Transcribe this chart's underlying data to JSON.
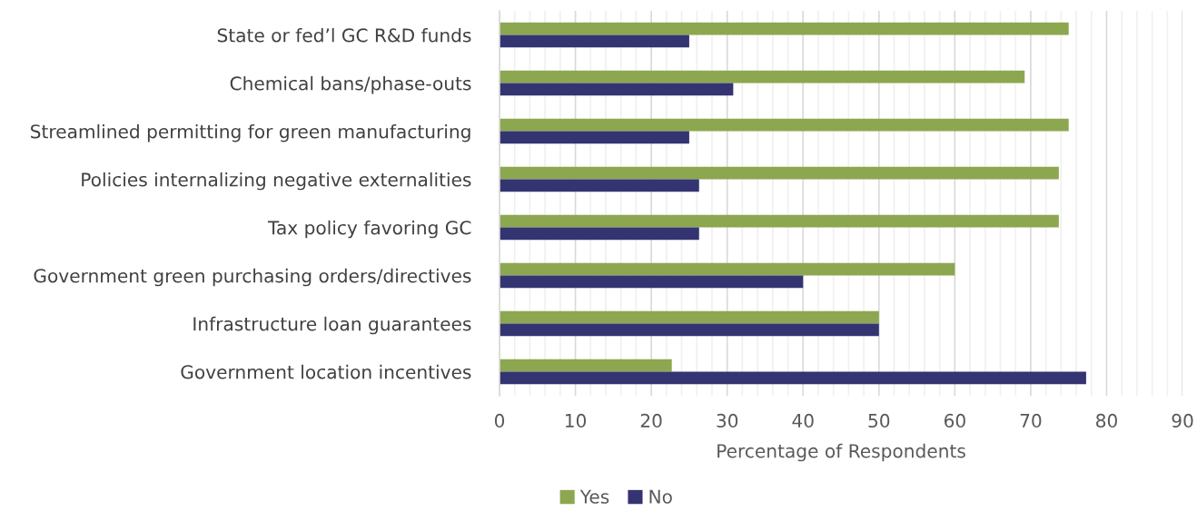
{
  "chart_data": {
    "type": "bar",
    "orientation": "horizontal",
    "categories": [
      "State or fed’l GC R&D funds",
      "Chemical bans/phase-outs",
      "Streamlined permitting for green manufacturing",
      "Policies internalizing negative externalities",
      "Tax policy favoring GC",
      "Government green purchasing orders/directives",
      "Infrastructure loan guarantees",
      "Government location incentives"
    ],
    "series": [
      {
        "name": "Yes",
        "color": "#8ca74f",
        "values": [
          75,
          69.2,
          75,
          73.7,
          73.7,
          60,
          50,
          22.7
        ]
      },
      {
        "name": "No",
        "color": "#343472",
        "values": [
          25,
          30.8,
          25,
          26.3,
          26.3,
          40,
          50,
          77.3
        ]
      }
    ],
    "xlabel": "Percentage of Respondents",
    "xlim": [
      0,
      90
    ],
    "xticks": [
      0,
      {
        "value": 2,
        "label": null
      },
      {
        "value": 4,
        "label": null
      },
      {
        "value": 6,
        "label": null
      },
      {
        "value": 8,
        "label": null
      },
      10,
      {
        "value": 12,
        "label": null
      },
      {
        "value": 14,
        "label": null
      },
      {
        "value": 16,
        "label": null
      },
      {
        "value": 18,
        "label": null
      },
      20,
      {
        "value": 22,
        "label": null
      },
      {
        "value": 24,
        "label": null
      },
      {
        "value": 26,
        "label": null
      },
      {
        "value": 28,
        "label": null
      },
      30,
      {
        "value": 32,
        "label": null
      },
      {
        "value": 34,
        "label": null
      },
      {
        "value": 36,
        "label": null
      },
      {
        "value": 38,
        "label": null
      },
      40,
      {
        "value": 42,
        "label": null
      },
      {
        "value": 44,
        "label": null
      },
      {
        "value": 46,
        "label": null
      },
      {
        "value": 48,
        "label": null
      },
      50,
      {
        "value": 52,
        "label": null
      },
      {
        "value": 54,
        "label": null
      },
      {
        "value": 56,
        "label": null
      },
      {
        "value": 58,
        "label": null
      },
      60,
      {
        "value": 62,
        "label": null
      },
      {
        "value": 64,
        "label": null
      },
      {
        "value": 66,
        "label": null
      },
      {
        "value": 68,
        "label": null
      },
      70,
      {
        "value": 72,
        "label": null
      },
      {
        "value": 74,
        "label": null
      },
      {
        "value": 76,
        "label": null
      },
      {
        "value": 78,
        "label": null
      },
      80,
      {
        "value": 82,
        "label": null
      },
      {
        "value": 84,
        "label": null
      },
      {
        "value": 86,
        "label": null
      },
      {
        "value": 88,
        "label": null
      },
      90
    ],
    "grid": "x",
    "legend": "bottom"
  }
}
